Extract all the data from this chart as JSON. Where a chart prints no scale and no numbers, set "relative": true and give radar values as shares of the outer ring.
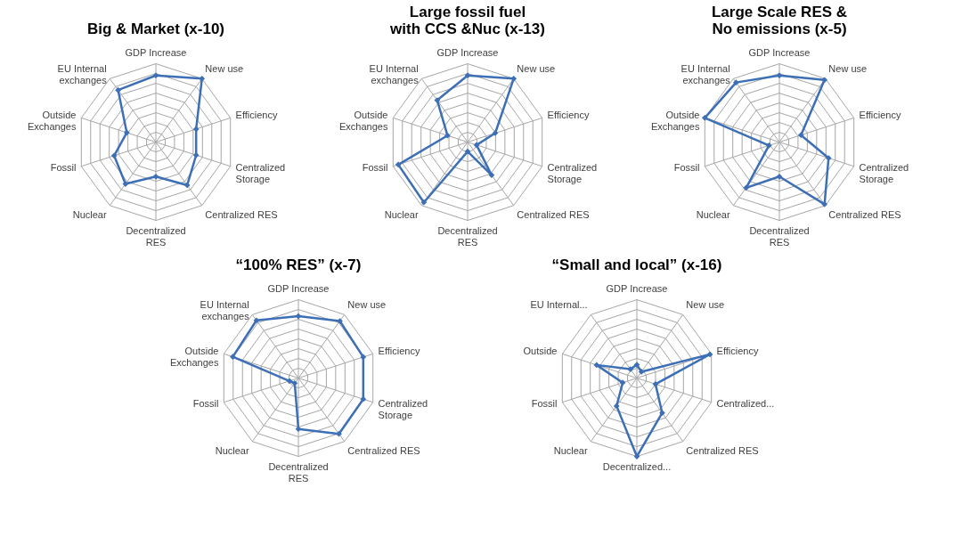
{
  "chart_data": [
    {
      "type": "radar",
      "title": "Big & Market (x-10)",
      "relative": true,
      "marker": "diamond",
      "grid": true,
      "categories": [
        "GDP Increase",
        "New use",
        "Efficiency",
        "Centralized Storage",
        "Centralized RES",
        "Decentralized RES",
        "Nuclear",
        "Fossil",
        "Outside Exchanges",
        "EU Internal exchanges"
      ],
      "series": [
        {
          "color": "#3d6fb6",
          "values": [
            0.85,
            1.0,
            0.54,
            0.54,
            0.68,
            0.44,
            0.66,
            0.56,
            0.39,
            0.82
          ]
        }
      ]
    },
    {
      "type": "radar",
      "title": "Large fossil fuel with CCS &Nuc (x-13)",
      "relative": true,
      "marker": "diamond",
      "grid": true,
      "categories": [
        "GDP Increase",
        "New use",
        "Efficiency",
        "Centralized Storage",
        "Centralized RES",
        "Decentralized RES",
        "Nuclear",
        "Fossil",
        "Outside Exchanges",
        "EU Internal exchanges"
      ],
      "series": [
        {
          "color": "#3d6fb6",
          "values": [
            0.85,
            1.0,
            0.37,
            0.12,
            0.52,
            0.12,
            0.95,
            0.93,
            0.27,
            0.66
          ]
        }
      ]
    },
    {
      "type": "radar",
      "title": "Large Scale RES & No emissions (x-5)",
      "relative": true,
      "marker": "diamond",
      "grid": true,
      "categories": [
        "GDP Increase",
        "New use",
        "Efficiency",
        "Centralized Storage",
        "Centralized RES",
        "Decentralized RES",
        "Nuclear",
        "Fossil",
        "Outside Exchanges",
        "EU Internal exchanges"
      ],
      "series": [
        {
          "color": "#3d6fb6",
          "values": [
            0.85,
            0.98,
            0.29,
            0.66,
            0.98,
            0.44,
            0.72,
            0.14,
            1.0,
            0.94
          ]
        }
      ]
    },
    {
      "type": "radar",
      "title": "“100% RES” (x-7)",
      "relative": true,
      "marker": "diamond",
      "grid": true,
      "categories": [
        "GDP Increase",
        "New use",
        "Efficiency",
        "Centralized Storage",
        "Centralized RES",
        "Decentralized RES",
        "Nuclear",
        "Fossil",
        "Outside Exchanges",
        "EU Internal exchanges"
      ],
      "series": [
        {
          "color": "#3d6fb6",
          "values": [
            0.79,
            0.9,
            0.87,
            0.87,
            0.88,
            0.65,
            0.08,
            0.12,
            0.88,
            0.91
          ]
        }
      ]
    },
    {
      "type": "radar",
      "title": "“Small and local” (x-16)",
      "relative": true,
      "marker": "diamond",
      "grid": true,
      "categories": [
        "GDP Increase",
        "New use",
        "Efficiency",
        "Centralized...",
        "Centralized RES",
        "Decentralized...",
        "Nuclear",
        "Fossil",
        "Outside",
        "EU Internal..."
      ],
      "series": [
        {
          "color": "#3d6fb6",
          "values": [
            0.17,
            0.1,
            0.98,
            0.25,
            0.55,
            1.0,
            0.44,
            0.19,
            0.54,
            0.14
          ]
        }
      ]
    }
  ]
}
